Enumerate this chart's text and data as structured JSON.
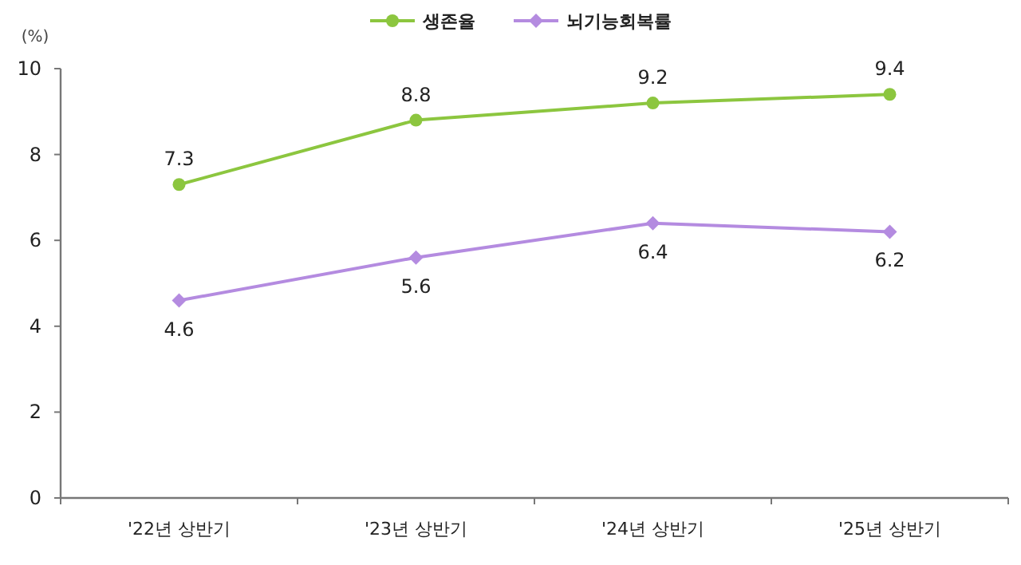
{
  "chart_data": {
    "type": "line",
    "ylabel": "(%)",
    "categories": [
      "'22년 상반기",
      "'23년 상반기",
      "'24년 상반기",
      "'25년 상반기"
    ],
    "series": [
      {
        "name": "생존율",
        "color": "#8cc63f",
        "marker": "circle",
        "values": [
          7.3,
          8.8,
          9.2,
          9.4
        ]
      },
      {
        "name": "뇌기능회복률",
        "color": "#b48be0",
        "marker": "diamond",
        "values": [
          4.6,
          5.6,
          6.4,
          6.2
        ]
      }
    ],
    "ylim": [
      0,
      10
    ],
    "yticks": [
      0,
      2,
      4,
      6,
      8,
      10
    ],
    "data_labels": true,
    "legend": "top",
    "grid": false
  }
}
